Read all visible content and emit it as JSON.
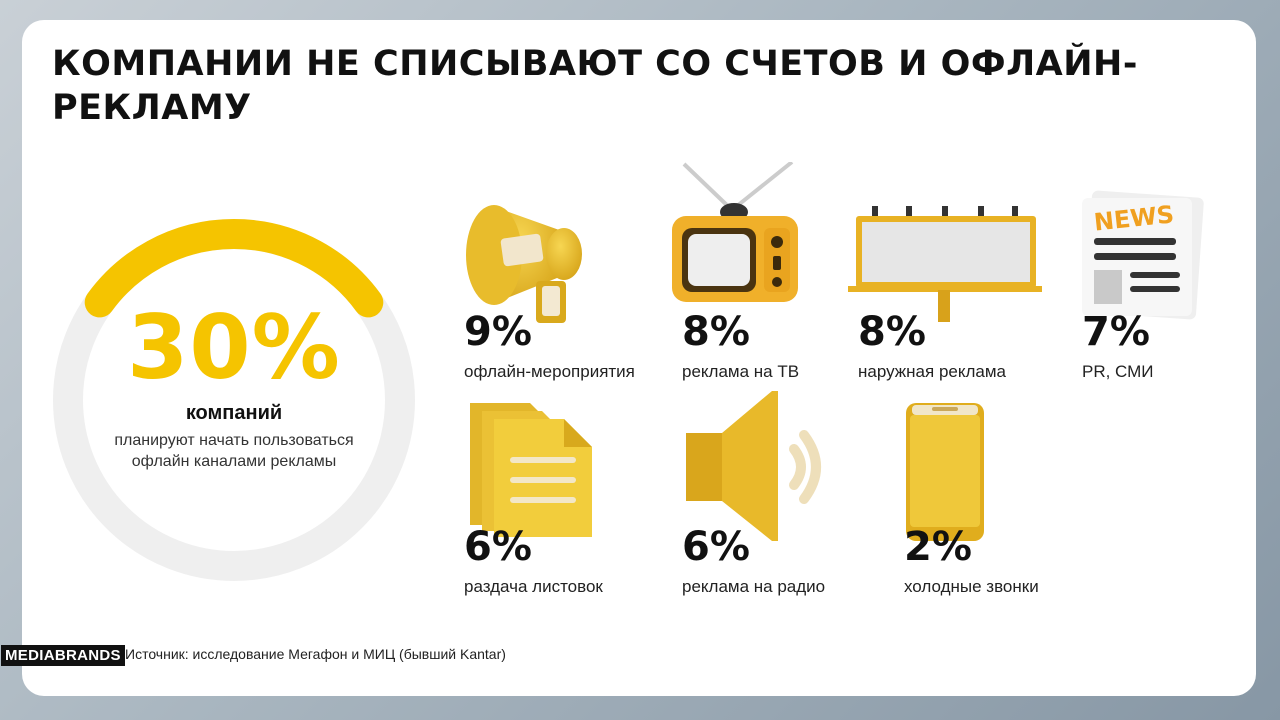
{
  "title": "КОМПАНИИ НЕ СПИСЫВАЮТ СО СЧЕТОВ И ОФЛАЙН-РЕКЛАМУ",
  "colors": {
    "accent": "#f5c400",
    "ring": "#efefef",
    "text": "#111111"
  },
  "highlight": {
    "value": "30%",
    "fraction": 0.3,
    "label": "компаний",
    "description": "планируют начать пользоваться офлайн каналами рекламы"
  },
  "chart_data": {
    "type": "table",
    "title": "КОМПАНИИ НЕ СПИСЫВАЮТ СО СЧЕТОВ И ОФЛАЙН-РЕКЛАМУ",
    "categories": [
      "офлайн-мероприятия",
      "реклама на ТВ",
      "наружная реклама",
      "PR, СМИ",
      "раздача листовок",
      "реклама на радио",
      "холодные звонки"
    ],
    "values": [
      9,
      8,
      8,
      7,
      6,
      6,
      2
    ],
    "unit": "%"
  },
  "stats": [
    {
      "value": "9%",
      "label": "офлайн-мероприятия",
      "icon": "megaphone-icon"
    },
    {
      "value": "8%",
      "label": "реклама на ТВ",
      "icon": "tv-icon"
    },
    {
      "value": "8%",
      "label": "наружная реклама",
      "icon": "billboard-icon"
    },
    {
      "value": "7%",
      "label": "PR, СМИ",
      "icon": "newspaper-icon",
      "icon_text": "NEWS"
    },
    {
      "value": "6%",
      "label": "раздача листовок",
      "icon": "flyers-icon"
    },
    {
      "value": "6%",
      "label": "реклама на радио",
      "icon": "speaker-icon"
    },
    {
      "value": "2%",
      "label": "холодные звонки",
      "icon": "phone-icon"
    }
  ],
  "footer": {
    "logo": "MEDIABRANDS",
    "source": "Источник: исследование Мегафон и МИЦ (бывший Kantar)"
  }
}
